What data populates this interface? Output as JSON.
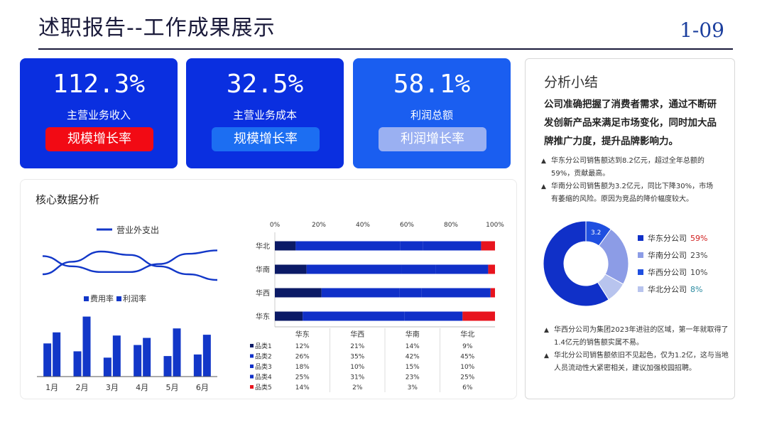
{
  "header": {
    "title": "述职报告--工作成果展示",
    "page_no": "1-09"
  },
  "kpis": [
    {
      "value": "112.3%",
      "label": "主营业务收入",
      "button": "规模增长率",
      "button_color": "#f20a14"
    },
    {
      "value": "32.5%",
      "label": "主营业务成本",
      "button": "规模增长率",
      "button_color": "#1c6ef2"
    },
    {
      "value": "58.1%",
      "label": "利润总额",
      "button": "利润增长率",
      "button_color": "#9ab0f2"
    }
  ],
  "core": {
    "title": "核心数据分析"
  },
  "summary": {
    "title": "分析小结",
    "lead": "公司准确把握了消费者需求，通过不断研发创新产品来满足市场变化，同时加大品牌推广力度，提升品牌影响力。",
    "notes_top": [
      "华东分公司销售额达到8.2亿元，超过全年总额的59%，贡献最高。",
      "华南分公司销售额为3.2亿元，同比下降30%，市场有萎缩的风险。原因为竞品的降价幅度较大。"
    ],
    "notes_bottom": [
      "华西分公司为集团2023年进驻的区域，第一年就取得了1.4亿元的销售额实属不易。",
      "华北分公司销售额依旧不见起色，仅为1.2亿，这与当地人员流动性大紧密相关，建议加强校园招聘。"
    ]
  },
  "chart_data": [
    {
      "type": "line",
      "legend": [
        "营业外支出"
      ],
      "x": [
        0,
        1,
        2,
        3,
        4,
        5,
        6
      ],
      "series": [
        {
          "values": [
            30,
            52,
            70,
            64,
            44,
            30,
            20
          ]
        },
        {
          "values": [
            62,
            44,
            34,
            34,
            48,
            66,
            72
          ]
        }
      ],
      "ylim": [
        0,
        100
      ],
      "color": "#1237c8"
    },
    {
      "type": "bar",
      "categories": [
        "1月",
        "2月",
        "3月",
        "4月",
        "5月",
        "6月"
      ],
      "series": [
        {
          "name": "费用率",
          "values": [
            42,
            32,
            24,
            40,
            26,
            28
          ]
        },
        {
          "name": "利润率",
          "values": [
            56,
            76,
            52,
            49,
            61,
            53
          ]
        }
      ],
      "ylim": [
        0,
        90
      ],
      "colors": [
        "#1237c8",
        "#1237c8"
      ]
    },
    {
      "type": "bar",
      "orientation": "horizontal-stacked-100",
      "categories": [
        "华北",
        "华南",
        "华西",
        "华东"
      ],
      "ticks": [
        "0%",
        "20%",
        "40%",
        "60%",
        "80%",
        "100%"
      ],
      "table_header": [
        "华东",
        "华西",
        "华南",
        "华北"
      ],
      "series": [
        {
          "name": "品类1",
          "color": "#0b1a66",
          "values": {
            "华东": 12,
            "华西": 21,
            "华南": 14,
            "华北": 9
          },
          "labels": [
            "12%",
            "21%",
            "14%",
            "9%"
          ]
        },
        {
          "name": "品类2",
          "color": "#1030c8",
          "values": {
            "华东": 26,
            "华西": 35,
            "华南": 42,
            "华北": 45
          },
          "labels": [
            "26%",
            "35%",
            "42%",
            "45%"
          ]
        },
        {
          "name": "品类3",
          "color": "#1030c8",
          "values": {
            "华东": 18,
            "华西": 10,
            "华南": 15,
            "华北": 10
          },
          "labels": [
            "18%",
            "10%",
            "15%",
            "10%"
          ]
        },
        {
          "name": "品类4",
          "color": "#1030c8",
          "values": {
            "华东": 25,
            "华西": 31,
            "华南": 23,
            "华北": 25
          },
          "labels": [
            "25%",
            "31%",
            "23%",
            "25%"
          ]
        },
        {
          "name": "品类5",
          "color": "#e8141e",
          "values": {
            "华东": 14,
            "华西": 2,
            "华南": 3,
            "华北": 6
          },
          "labels": [
            "14%",
            "2%",
            "3%",
            "6%"
          ]
        }
      ]
    },
    {
      "type": "pie",
      "donut": true,
      "slices": [
        {
          "name": "华东分公司",
          "value": 59,
          "label": "59%",
          "color": "#1030c8",
          "text_color": "#d12020"
        },
        {
          "name": "华南分公司",
          "value": 23,
          "label": "23%",
          "color": "#8c9ce6",
          "text_color": "#444444"
        },
        {
          "name": "华西分公司",
          "value": 10,
          "label": "10%",
          "color": "#1f4fe0",
          "text_color": "#444444"
        },
        {
          "name": "华北分公司",
          "value": 8,
          "label": "8%",
          "color": "#b8c4ee",
          "text_color": "#2a8aa0"
        }
      ],
      "label_visible": "3.2"
    }
  ]
}
